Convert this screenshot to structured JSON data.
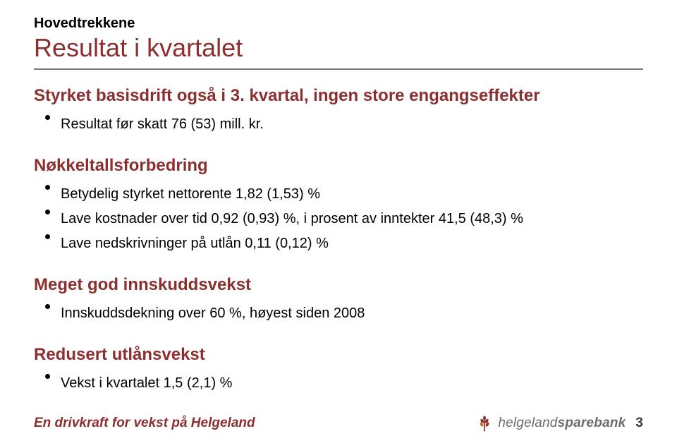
{
  "colors": {
    "accent": "#8b2f2f",
    "text": "#000000",
    "hr": "#7a7a7a",
    "footer_text": "#8b2f2f",
    "logo_text": "#6b6b6b",
    "pagenum": "#3a3a3a",
    "logo_fill": "#8b2f2f",
    "logo_accent": "#c96a2a"
  },
  "eyebrow": "Hovedtrekkene",
  "title": "Resultat i kvartalet",
  "sections": [
    {
      "head": "Styrket basisdrift også i 3. kvartal, ingen store engangseffekter",
      "bullets": [
        "Resultat før skatt 76 (53) mill. kr."
      ]
    },
    {
      "head": "Nøkkeltallsforbedring",
      "bullets": [
        "Betydelig styrket nettorente 1,82 (1,53) %",
        "Lave kostnader over tid 0,92 (0,93) %, i prosent av inntekter 41,5 (48,3) %",
        "Lave nedskrivninger på utlån 0,11 (0,12) %"
      ]
    },
    {
      "head": "Meget god innskuddsvekst",
      "bullets": [
        "Innskuddsdekning over 60 %, høyest siden 2008"
      ]
    },
    {
      "head": "Redusert utlånsvekst",
      "bullets": [
        "Vekst i kvartalet 1,5 (2,1) %"
      ]
    }
  ],
  "footer": {
    "tagline": "En drivkraft for vekst på Helgeland",
    "brand_prefix": "helgeland",
    "brand_suffix": "sparebank",
    "page": "3"
  }
}
